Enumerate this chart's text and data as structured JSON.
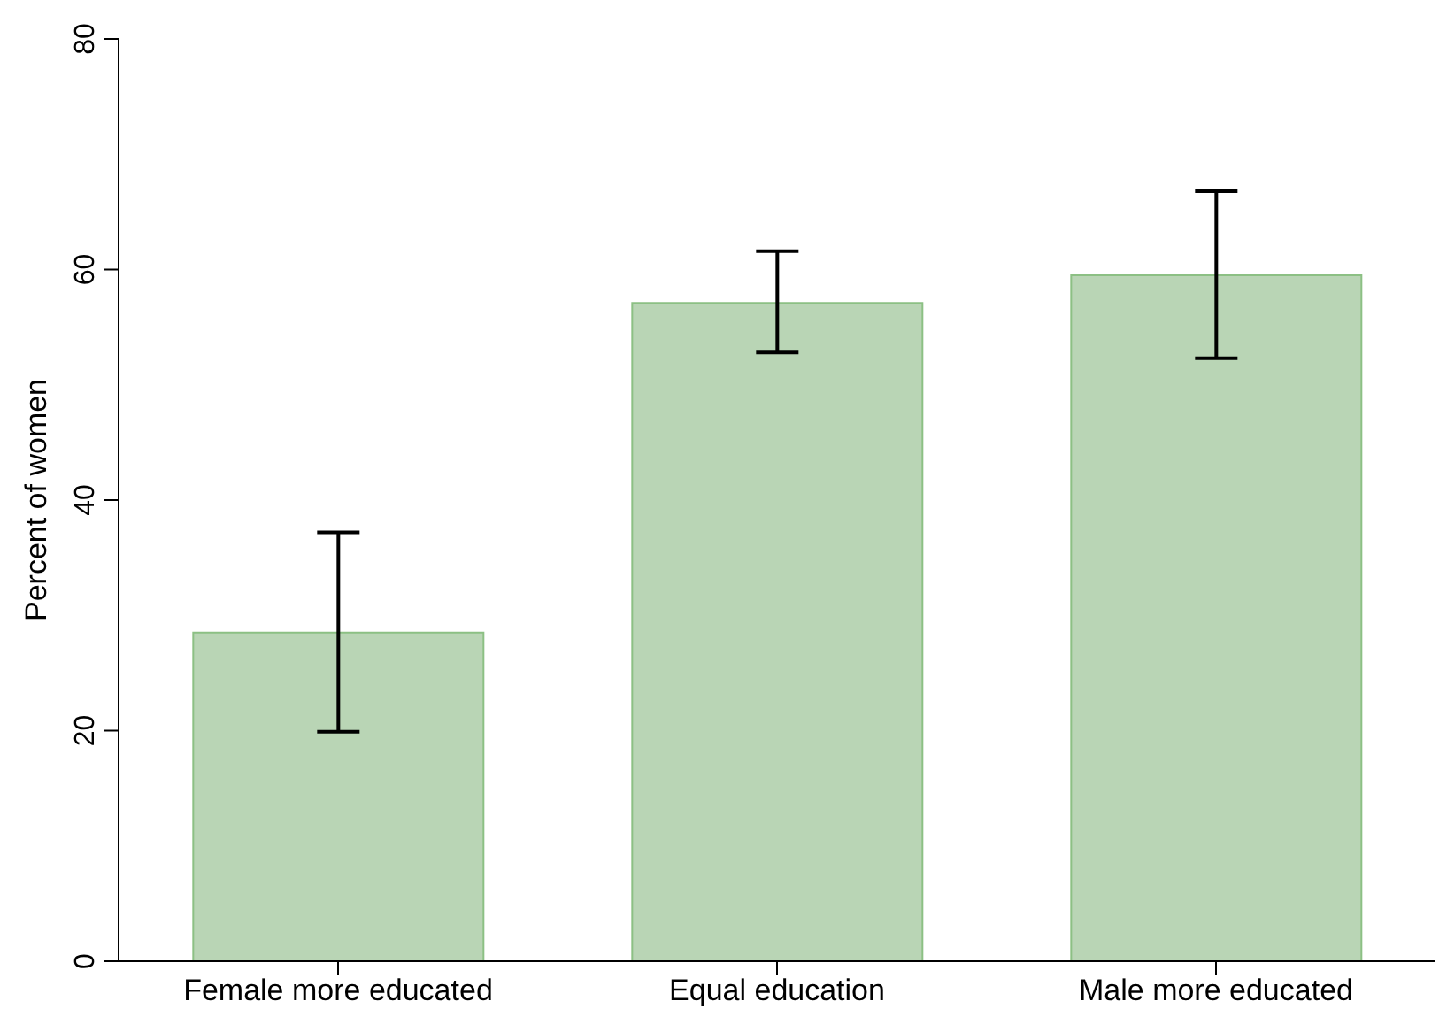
{
  "chart_data": {
    "type": "bar",
    "ylabel": "Percent of women",
    "categories": [
      "Female more educated",
      "Equal education",
      "Male more educated"
    ],
    "values": [
      28.5,
      57.1,
      59.5
    ],
    "errors": [
      [
        19.9,
        37.2
      ],
      [
        52.8,
        61.6
      ],
      [
        52.3,
        66.8
      ]
    ],
    "color": "#b9d5b5",
    "ylim": [
      0,
      80
    ],
    "yticks": [
      0,
      20,
      40,
      60,
      80
    ],
    "grid": false,
    "legend": false
  }
}
